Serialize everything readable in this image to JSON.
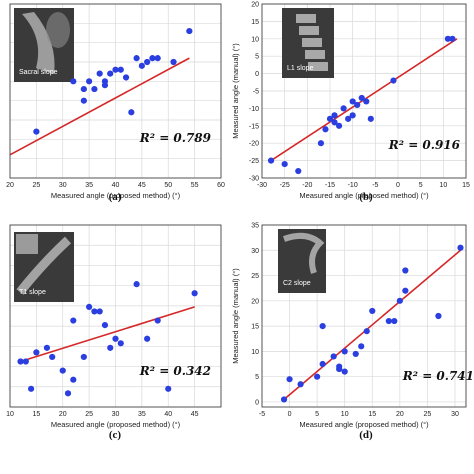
{
  "chart_data": [
    {
      "type": "scatter",
      "panel_label": "(a)",
      "inset_label": "Sacral slope",
      "r2_text": "R² = 0.789",
      "xlabel": "Measured angle (proposed method) (°)",
      "ylabel": "",
      "xlim": [
        20,
        60
      ],
      "ylim": [
        25,
        70
      ],
      "xticks": [
        "20",
        "25",
        "30",
        "35",
        "40",
        "45",
        "50",
        "55",
        "60"
      ],
      "yticks": [],
      "points": [
        [
          25,
          37
        ],
        [
          32,
          50
        ],
        [
          34,
          45
        ],
        [
          35,
          50
        ],
        [
          36,
          48
        ],
        [
          38,
          49
        ],
        [
          37,
          52
        ],
        [
          39,
          52
        ],
        [
          40,
          53
        ],
        [
          41,
          53
        ],
        [
          43,
          42
        ],
        [
          44,
          56
        ],
        [
          45,
          54
        ],
        [
          46,
          55
        ],
        [
          47,
          56
        ],
        [
          48,
          56
        ],
        [
          51,
          55
        ],
        [
          54,
          63
        ],
        [
          42,
          51
        ],
        [
          34,
          48
        ],
        [
          38,
          50
        ]
      ],
      "fit_line": [
        [
          20,
          31
        ],
        [
          54,
          56
        ]
      ],
      "grid": true
    },
    {
      "type": "scatter",
      "panel_label": "(b)",
      "inset_label": "L1 slope",
      "r2_text": "R² = 0.916",
      "xlabel": "Measured angle (proposed method) (°)",
      "ylabel": "Measured angle (manual) (°)",
      "xlim": [
        -30,
        15
      ],
      "ylim": [
        -30,
        20
      ],
      "xticks": [
        "-30",
        "-25",
        "-20",
        "-15",
        "-10",
        "-5",
        "0",
        "5",
        "10",
        "15"
      ],
      "yticks": [
        "-30",
        "-25",
        "-20",
        "-15",
        "-10",
        "-5",
        "0",
        "5",
        "10",
        "15",
        "20"
      ],
      "points": [
        [
          -28,
          -25
        ],
        [
          -25,
          -26
        ],
        [
          -22,
          -28
        ],
        [
          -17,
          -20
        ],
        [
          -16,
          -16
        ],
        [
          -15,
          -13
        ],
        [
          -14,
          -14
        ],
        [
          -14,
          -12
        ],
        [
          -13,
          -15
        ],
        [
          -12,
          -10
        ],
        [
          -11,
          -13
        ],
        [
          -10,
          -8
        ],
        [
          -10,
          -12
        ],
        [
          -9,
          -9
        ],
        [
          -8,
          -7
        ],
        [
          -7,
          -8
        ],
        [
          -6,
          -13
        ],
        [
          -1,
          -2
        ],
        [
          11,
          10
        ],
        [
          12,
          10
        ]
      ],
      "fit_line": [
        [
          -28,
          -25
        ],
        [
          13,
          10
        ]
      ],
      "grid": true
    },
    {
      "type": "scatter",
      "panel_label": "(c)",
      "inset_label": "T1 slope",
      "r2_text": "R² = 0.342",
      "xlabel": "Measured angle (proposed method) (°)",
      "ylabel": "",
      "xlim": [
        10,
        50
      ],
      "ylim": [
        10,
        50
      ],
      "xticks": [
        "10",
        "15",
        "20",
        "25",
        "30",
        "35",
        "40",
        "45"
      ],
      "yticks": [],
      "points": [
        [
          12,
          20
        ],
        [
          13,
          20
        ],
        [
          14,
          14
        ],
        [
          15,
          22
        ],
        [
          17,
          23
        ],
        [
          18,
          21
        ],
        [
          20,
          18
        ],
        [
          21,
          13
        ],
        [
          22,
          29
        ],
        [
          22,
          16
        ],
        [
          24,
          21
        ],
        [
          25,
          32
        ],
        [
          26,
          31
        ],
        [
          27,
          31
        ],
        [
          28,
          28
        ],
        [
          29,
          23
        ],
        [
          30,
          25
        ],
        [
          31,
          24
        ],
        [
          34,
          37
        ],
        [
          36,
          25
        ],
        [
          38,
          29
        ],
        [
          40,
          14
        ],
        [
          45,
          35
        ]
      ],
      "fit_line": [
        [
          12,
          20
        ],
        [
          45,
          32
        ]
      ],
      "grid": true
    },
    {
      "type": "scatter",
      "panel_label": "(d)",
      "inset_label": "C2 slope",
      "r2_text": "R² = 0.741",
      "xlabel": "Measured angle (proposed method) (°)",
      "ylabel": "Measured angle (manual) (°)",
      "xlim": [
        -5,
        32
      ],
      "ylim": [
        -1,
        35
      ],
      "xticks": [
        "-5",
        "0",
        "5",
        "10",
        "15",
        "20",
        "25",
        "30"
      ],
      "yticks": [
        "0",
        "5",
        "10",
        "15",
        "20",
        "25",
        "30",
        "35"
      ],
      "points": [
        [
          -1,
          0.5
        ],
        [
          0,
          4.5
        ],
        [
          2,
          3.5
        ],
        [
          5,
          5
        ],
        [
          6,
          7.5
        ],
        [
          6,
          15
        ],
        [
          8,
          9
        ],
        [
          9,
          6.5
        ],
        [
          9,
          7
        ],
        [
          10,
          6
        ],
        [
          10,
          10
        ],
        [
          12,
          9.5
        ],
        [
          13,
          11
        ],
        [
          14,
          14
        ],
        [
          15,
          18
        ],
        [
          18,
          16
        ],
        [
          19,
          16
        ],
        [
          20,
          20
        ],
        [
          21,
          22
        ],
        [
          21,
          26
        ],
        [
          27,
          17
        ],
        [
          31,
          30.5
        ]
      ],
      "fit_line": [
        [
          -1,
          0.5
        ],
        [
          31,
          30
        ]
      ],
      "grid": true
    }
  ]
}
